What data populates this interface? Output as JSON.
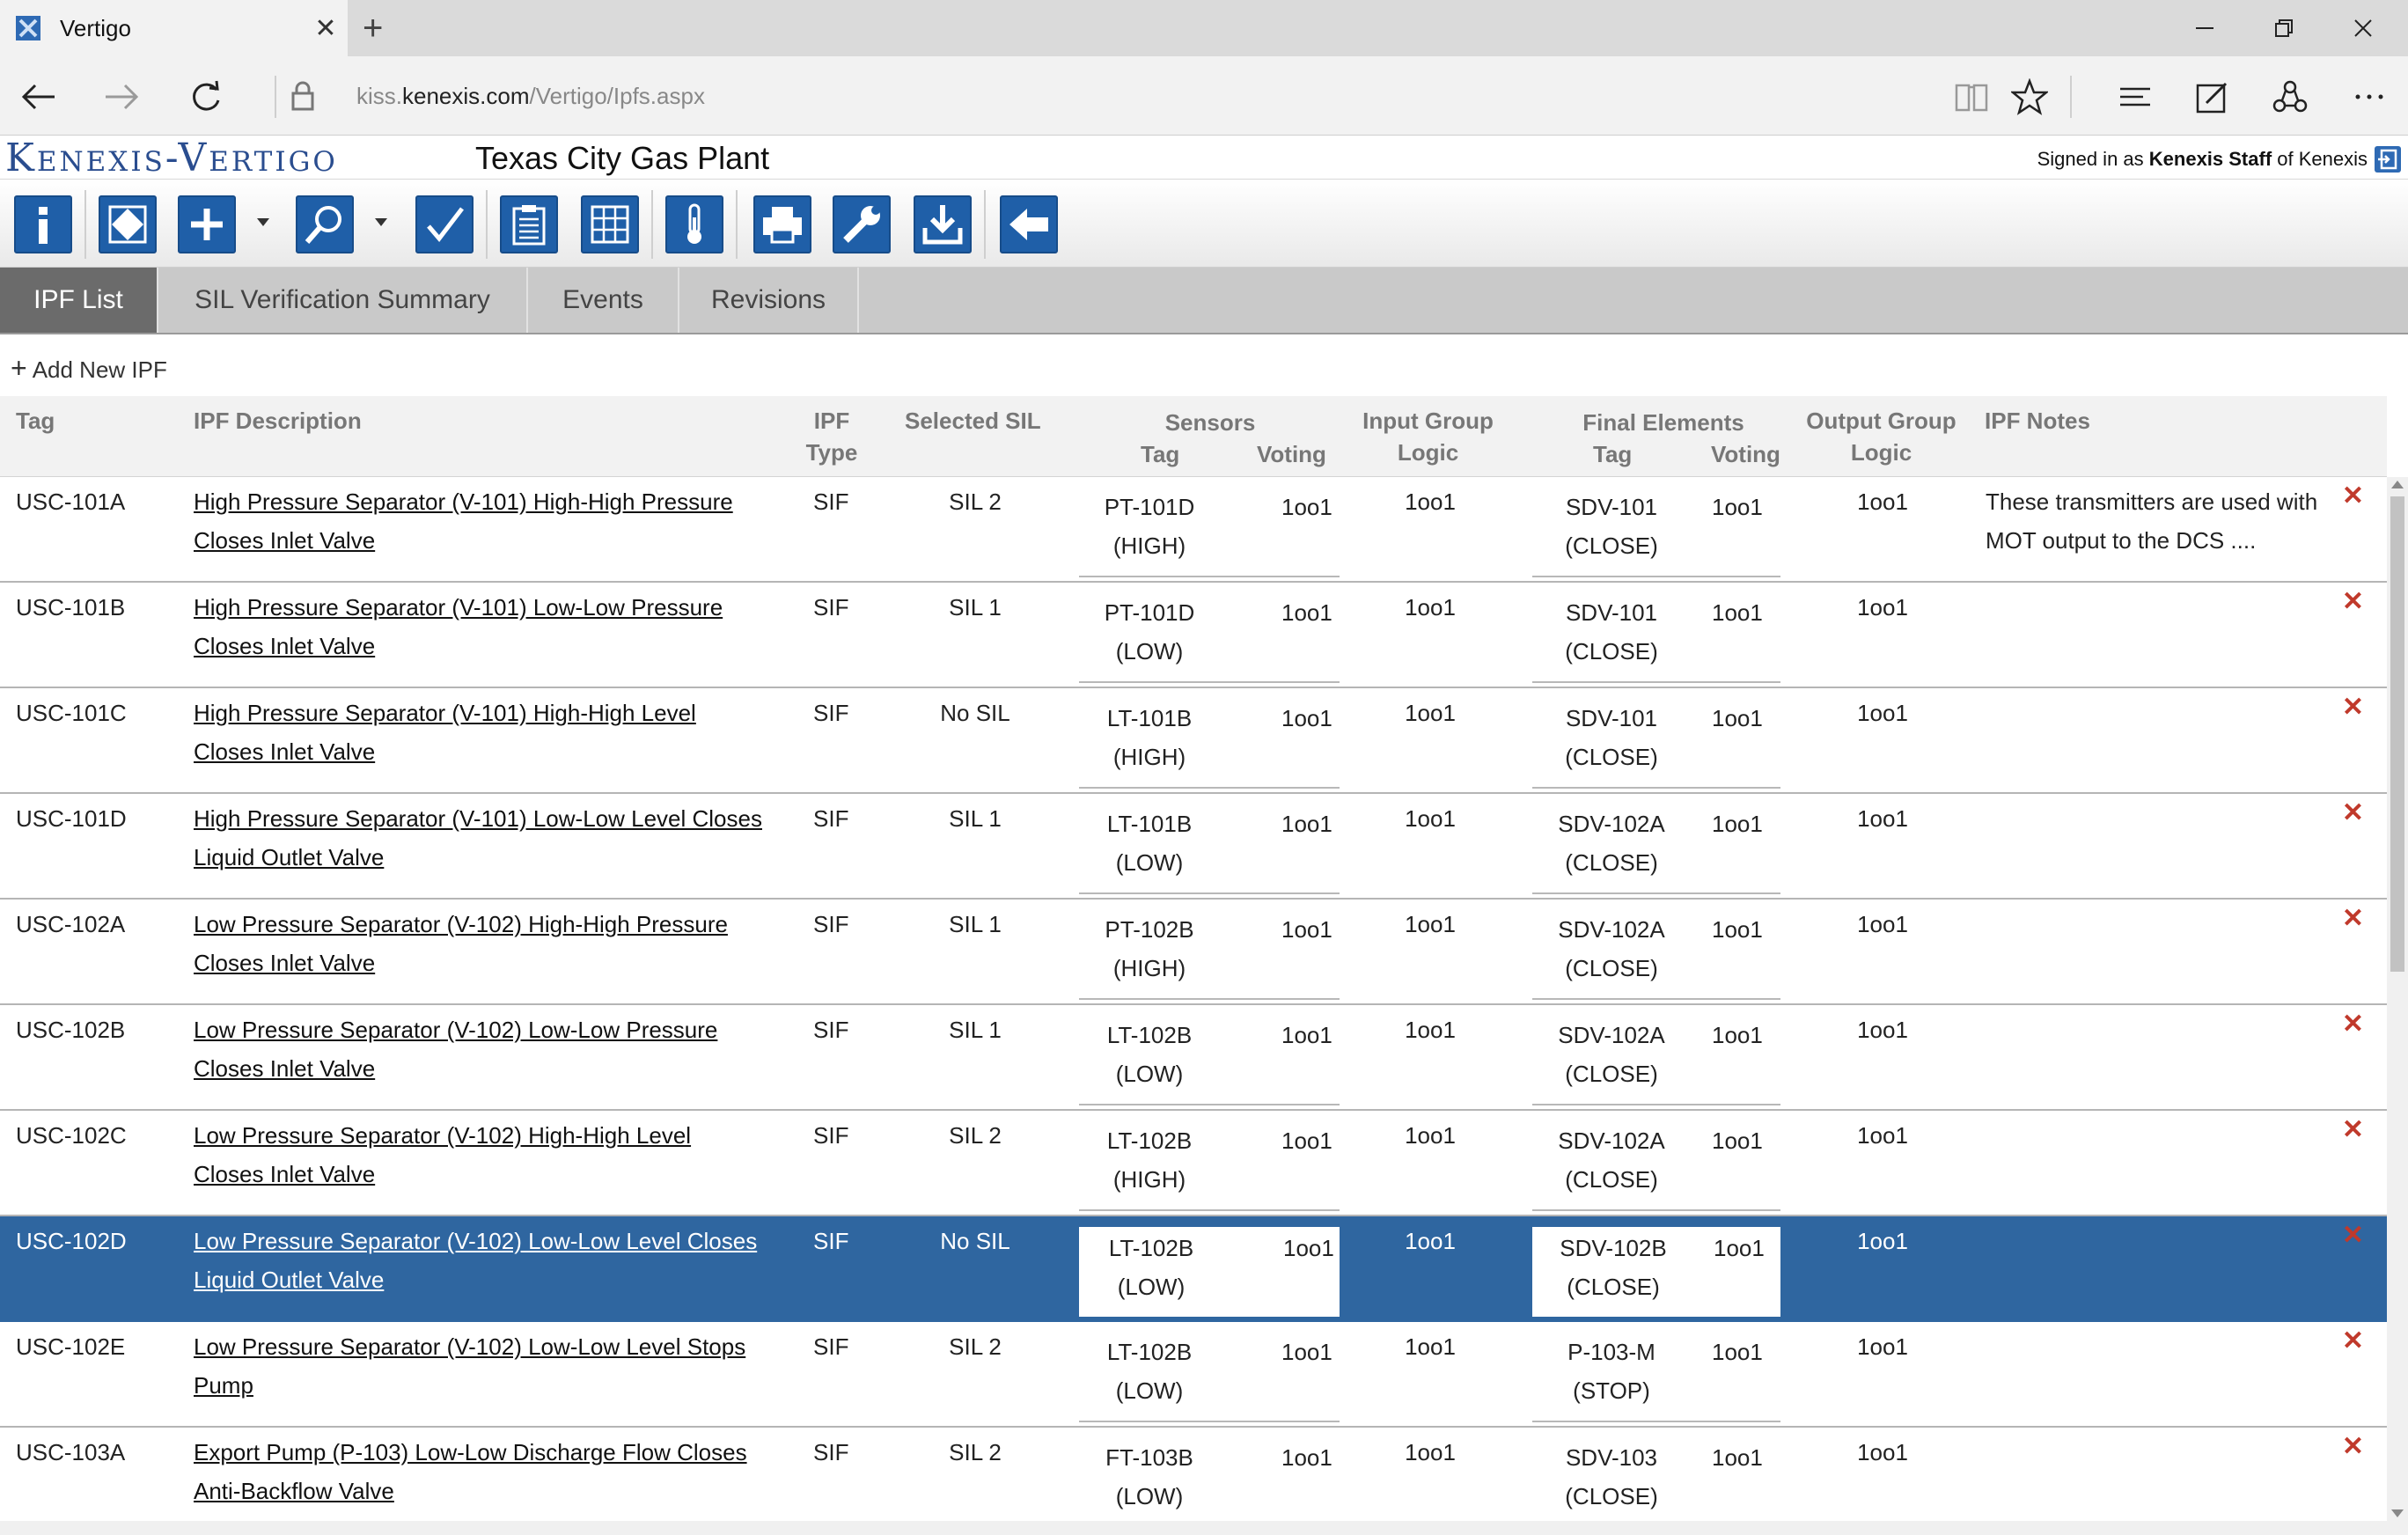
{
  "browser": {
    "tab_title": "Vertigo",
    "tab_close": "✕",
    "new_tab": "+",
    "url_prefix": "kiss.",
    "url_domain": "kenexis.com",
    "url_path": "/Vertigo/Ipfs.aspx"
  },
  "app": {
    "logo": "Kenexis-Vertigo",
    "plant": "Texas City Gas Plant",
    "signed_prefix": "Signed in as ",
    "signed_user": "Kenexis Staff",
    "signed_mid": " of Kenexis"
  },
  "tabs": [
    "IPF List",
    "SIL Verification Summary",
    "Events",
    "Revisions"
  ],
  "add_new": "Add New IPF",
  "columns": {
    "tag": "Tag",
    "desc": "IPF Description",
    "type_l1": "IPF",
    "type_l2": "Type",
    "sil": "Selected SIL",
    "sensors": "Sensors",
    "sensors_tag": "Tag",
    "sensors_voting": "Voting",
    "input_l1": "Input Group",
    "input_l2": "Logic",
    "final": "Final Elements",
    "final_tag": "Tag",
    "final_voting": "Voting",
    "output_l1": "Output Group",
    "output_l2": "Logic",
    "notes": "IPF Notes"
  },
  "rows": [
    {
      "tag": "USC-101A",
      "desc1": "High Pressure Separator (V-101) High-High Pressure ",
      "desc2": "Closes Inlet Valve",
      "type": "SIF",
      "sil": "SIL 2",
      "s_tag1": "PT-101D",
      "s_tag2": "(HIGH)",
      "s_vote": "1oo1",
      "in_logic": "1oo1",
      "f_tag1": "SDV-101",
      "f_tag2": "(CLOSE)",
      "f_vote": "1oo1",
      "out_logic": "1oo1",
      "notes1": "These transmitters are used with",
      "notes2": "MOT output to the DCS ....",
      "del": "✕"
    },
    {
      "tag": "USC-101B",
      "desc1": "High Pressure Separator (V-101) Low-Low Pressure ",
      "desc2": "Closes Inlet Valve",
      "type": "SIF",
      "sil": "SIL 1",
      "s_tag1": "PT-101D",
      "s_tag2": "(LOW)",
      "s_vote": "1oo1",
      "in_logic": "1oo1",
      "f_tag1": "SDV-101",
      "f_tag2": "(CLOSE)",
      "f_vote": "1oo1",
      "out_logic": "1oo1",
      "notes1": "",
      "notes2": "",
      "del": "✕"
    },
    {
      "tag": "USC-101C",
      "desc1": "High Pressure Separator (V-101) High-High Level ",
      "desc2": "Closes Inlet Valve",
      "type": "SIF",
      "sil": "No SIL",
      "s_tag1": "LT-101B",
      "s_tag2": "(HIGH)",
      "s_vote": "1oo1",
      "in_logic": "1oo1",
      "f_tag1": "SDV-101",
      "f_tag2": "(CLOSE)",
      "f_vote": "1oo1",
      "out_logic": "1oo1",
      "notes1": "",
      "notes2": "",
      "del": "✕"
    },
    {
      "tag": "USC-101D",
      "desc1": "High Pressure Separator (V-101) Low-Low Level Closes ",
      "desc2": "Liquid Outlet Valve",
      "type": "SIF",
      "sil": "SIL 1",
      "s_tag1": "LT-101B",
      "s_tag2": "(LOW)",
      "s_vote": "1oo1",
      "in_logic": "1oo1",
      "f_tag1": "SDV-102A",
      "f_tag2": "(CLOSE)",
      "f_vote": "1oo1",
      "out_logic": "1oo1",
      "notes1": "",
      "notes2": "",
      "del": "✕"
    },
    {
      "tag": "USC-102A",
      "desc1": "Low Pressure Separator (V-102) High-High Pressure ",
      "desc2": "Closes Inlet Valve",
      "type": "SIF",
      "sil": "SIL 1",
      "s_tag1": "PT-102B",
      "s_tag2": "(HIGH)",
      "s_vote": "1oo1",
      "in_logic": "1oo1",
      "f_tag1": "SDV-102A",
      "f_tag2": "(CLOSE)",
      "f_vote": "1oo1",
      "out_logic": "1oo1",
      "notes1": "",
      "notes2": "",
      "del": "✕"
    },
    {
      "tag": "USC-102B",
      "desc1": "Low Pressure Separator (V-102) Low-Low Pressure ",
      "desc2": "Closes Inlet Valve",
      "type": "SIF",
      "sil": "SIL 1",
      "s_tag1": "LT-102B",
      "s_tag2": "(LOW)",
      "s_vote": "1oo1",
      "in_logic": "1oo1",
      "f_tag1": "SDV-102A",
      "f_tag2": "(CLOSE)",
      "f_vote": "1oo1",
      "out_logic": "1oo1",
      "notes1": "",
      "notes2": "",
      "del": "✕"
    },
    {
      "tag": "USC-102C",
      "desc1": "Low Pressure Separator (V-102) High-High Level ",
      "desc2": "Closes Inlet Valve",
      "type": "SIF",
      "sil": "SIL 2",
      "s_tag1": "LT-102B",
      "s_tag2": "(HIGH)",
      "s_vote": "1oo1",
      "in_logic": "1oo1",
      "f_tag1": "SDV-102A",
      "f_tag2": "(CLOSE)",
      "f_vote": "1oo1",
      "out_logic": "1oo1",
      "notes1": "",
      "notes2": "",
      "del": "✕"
    },
    {
      "tag": "USC-102D",
      "desc1": "Low Pressure Separator (V-102) Low-Low Level Closes ",
      "desc2": "Liquid Outlet Valve",
      "type": "SIF",
      "sil": "No SIL",
      "s_tag1": "LT-102B",
      "s_tag2": "(LOW)",
      "s_vote": "1oo1",
      "in_logic": "1oo1",
      "f_tag1": "SDV-102B",
      "f_tag2": "(CLOSE)",
      "f_vote": "1oo1",
      "out_logic": "1oo1",
      "notes1": "",
      "notes2": "",
      "del": "✕"
    },
    {
      "tag": "USC-102E",
      "desc1": "Low Pressure Separator (V-102) Low-Low Level Stops ",
      "desc2": "Pump",
      "type": "SIF",
      "sil": "SIL 2",
      "s_tag1": "LT-102B",
      "s_tag2": "(LOW)",
      "s_vote": "1oo1",
      "in_logic": "1oo1",
      "f_tag1": "P-103-M",
      "f_tag2": "(STOP)",
      "f_vote": "1oo1",
      "out_logic": "1oo1",
      "notes1": "",
      "notes2": "",
      "del": "✕"
    },
    {
      "tag": "USC-103A",
      "desc1": "Export Pump (P-103) Low-Low Discharge Flow Closes ",
      "desc2": "Anti-Backflow Valve",
      "type": "SIF",
      "sil": "SIL 2",
      "s_tag1": "FT-103B",
      "s_tag2": "(LOW)",
      "s_vote": "1oo1",
      "in_logic": "1oo1",
      "f_tag1": "SDV-103",
      "f_tag2": "(CLOSE)",
      "f_vote": "1oo1",
      "out_logic": "1oo1",
      "notes1": "",
      "notes2": "",
      "del": "✕"
    }
  ],
  "selected_row": "USC-102D",
  "colors": {
    "accent": "#1f5fa8",
    "selected_row": "#2f66a0",
    "delete": "#c0392b",
    "active_tab": "#6b6b6b"
  },
  "icons": [
    "info-icon",
    "diamond-icon",
    "add-icon",
    "search-icon",
    "check-icon",
    "clipboard-icon",
    "grid-icon",
    "thermometer-icon",
    "print-icon",
    "wrench-icon",
    "download-icon",
    "back-arrow-icon"
  ]
}
